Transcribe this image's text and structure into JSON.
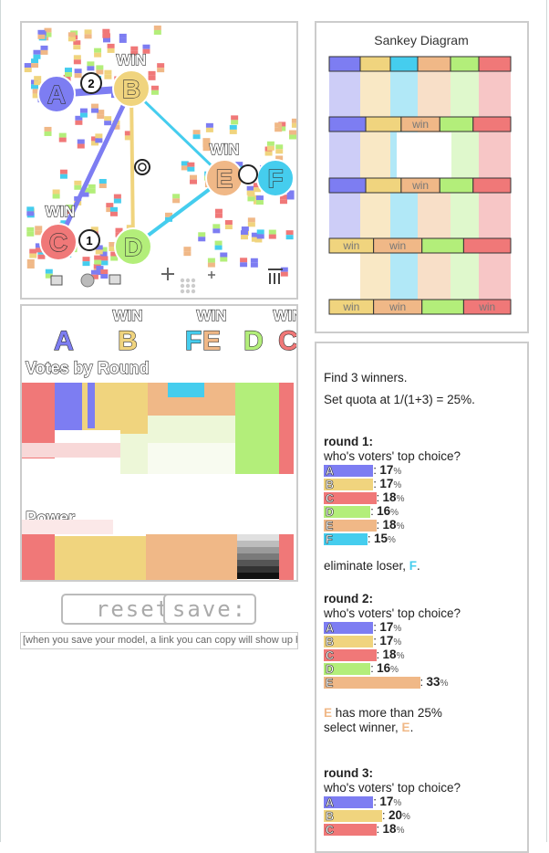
{
  "sim": {
    "candidates": [
      {
        "letter": "A",
        "color": "#7d7df2"
      },
      {
        "letter": "B",
        "color": "#f0d47e"
      },
      {
        "letter": "C",
        "color": "#f07878"
      },
      {
        "letter": "D",
        "color": "#b3ee7a"
      },
      {
        "letter": "E",
        "color": "#f0b887"
      },
      {
        "letter": "F",
        "color": "#45cdee"
      }
    ],
    "win_label": "WIN",
    "badges": [
      "2",
      "1"
    ],
    "tool_icons": [
      "voter-group-icon",
      "gear-icon",
      "add-candidate-icon",
      "plus-cross-icon",
      "crowd-icon",
      "add-voter-icon",
      "trash-icon"
    ]
  },
  "rounds": {
    "header_letters": [
      "A",
      "B",
      "FE",
      "D",
      "C"
    ],
    "win_label": "WIN",
    "votes_title": "Votes by Round",
    "power_title": "Power"
  },
  "sankey": {
    "title": "Sankey Diagram",
    "win_label": "win"
  },
  "buttons": {
    "reset": "reset",
    "save": "save:"
  },
  "link_placeholder": "[when you save your model, a link you can copy will show up here]",
  "text": {
    "line1": "Find 3 winners.",
    "line2": "Set quota at 1/(1+3) = 25%.",
    "rounds": [
      {
        "title": "round 1:",
        "question": "who's voters' top choice?",
        "bars": [
          {
            "letter": "A",
            "pct": "17",
            "unit": "%",
            "color": "#7d7df2"
          },
          {
            "letter": "B",
            "pct": "17",
            "unit": "%",
            "color": "#f0d47e"
          },
          {
            "letter": "C",
            "pct": "18",
            "unit": "%",
            "color": "#f07878"
          },
          {
            "letter": "D",
            "pct": "16",
            "unit": "%",
            "color": "#b3ee7a"
          },
          {
            "letter": "E",
            "pct": "18",
            "unit": "%",
            "color": "#f0b887"
          },
          {
            "letter": "F",
            "pct": "15",
            "unit": "%",
            "color": "#45cdee"
          }
        ]
      },
      {
        "title": "round 2:",
        "question": "who's voters' top choice?",
        "bars": [
          {
            "letter": "A",
            "pct": "17",
            "unit": "%",
            "color": "#7d7df2"
          },
          {
            "letter": "B",
            "pct": "17",
            "unit": "%",
            "color": "#f0d47e"
          },
          {
            "letter": "C",
            "pct": "18",
            "unit": "%",
            "color": "#f07878"
          },
          {
            "letter": "D",
            "pct": "16",
            "unit": "%",
            "color": "#b3ee7a"
          },
          {
            "letter": "E",
            "pct": "33",
            "unit": "%",
            "color": "#f0b887"
          }
        ]
      },
      {
        "title": "round 3:",
        "question": "who's voters' top choice?",
        "bars": [
          {
            "letter": "A",
            "pct": "17",
            "unit": "%",
            "color": "#7d7df2"
          },
          {
            "letter": "B",
            "pct": "20",
            "unit": "%",
            "color": "#f0d47e"
          },
          {
            "letter": "C",
            "pct": "18",
            "unit": "%",
            "color": "#f07878"
          }
        ]
      }
    ],
    "eliminate_prefix": "eliminate loser, ",
    "eliminate_letter": "F",
    "eliminate_suffix": ".",
    "winner_letter": "E",
    "winner_line1": " has more than 25%",
    "winner_line2_prefix": "select winner, ",
    "winner_line2_suffix": "."
  }
}
